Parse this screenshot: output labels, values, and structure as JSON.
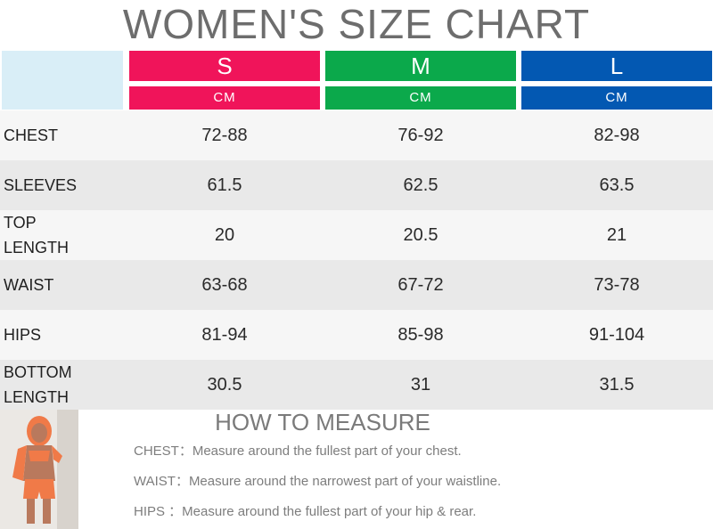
{
  "title": "WOMEN'S SIZE CHART",
  "sizes": [
    {
      "label": "S",
      "unit": "CM",
      "color": "#f0145a"
    },
    {
      "label": "M",
      "unit": "CM",
      "color": "#0ba94b"
    },
    {
      "label": "L",
      "unit": "CM",
      "color": "#0358b2"
    }
  ],
  "rows": [
    {
      "label": "CHEST",
      "values": [
        "72-88",
        "76-92",
        "82-98"
      ]
    },
    {
      "label": "SLEEVES",
      "values": [
        "61.5",
        "62.5",
        "63.5"
      ]
    },
    {
      "label": "TOP\nLENGTH",
      "values": [
        "20",
        "20.5",
        "21"
      ]
    },
    {
      "label": "WAIST",
      "values": [
        "63-68",
        "67-72",
        "73-78"
      ]
    },
    {
      "label": "HIPS",
      "values": [
        "81-94",
        "85-98",
        "91-104"
      ]
    },
    {
      "label": "BOTTOM\nLENGTH",
      "values": [
        "30.5",
        "31",
        "31.5"
      ]
    }
  ],
  "measure": {
    "title": "HOW TO MEASURE",
    "lines": [
      "CHEST：Measure around the fullest part of your chest.",
      "WAIST：Measure around the narrowest part of your waistline.",
      "HIPS  ：Measure around the fullest part of your hip & rear."
    ]
  }
}
